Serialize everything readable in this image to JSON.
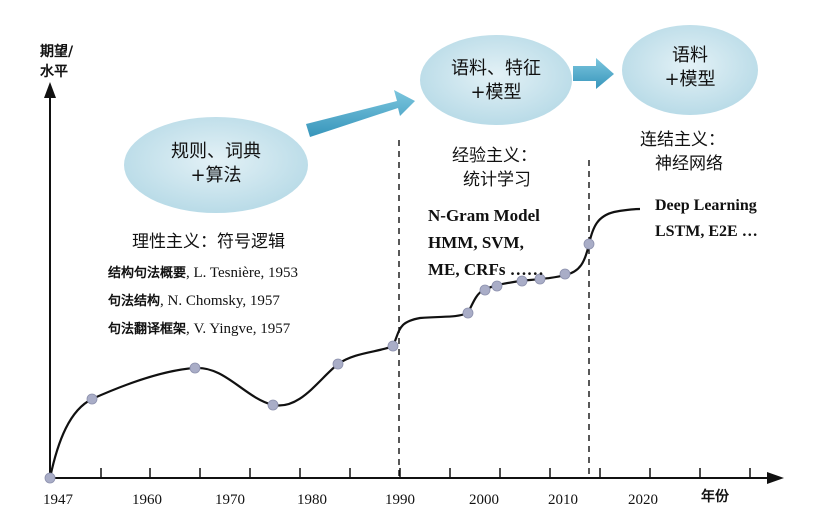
{
  "axes": {
    "y_label_line1": "期望/",
    "y_label_line2": "水平",
    "x_label": "年份",
    "x_ticks": [
      "1947",
      "1960",
      "1970",
      "1980",
      "1990",
      "2000",
      "2010",
      "2020"
    ]
  },
  "bubbles": {
    "rules": {
      "line1": "规则、词典",
      "line2": "+算法"
    },
    "features": {
      "line1": "语料、特征",
      "line2": "+模型"
    },
    "models": {
      "line1": "语料",
      "line2": "+模型"
    }
  },
  "eras": {
    "rationalism": {
      "title": "理性主义：符号逻辑",
      "refs": [
        {
          "zh": "结构句法概要",
          "en": ", L. Tesnière, 1953"
        },
        {
          "zh": "句法结构",
          "en": ", N. Chomsky, 1957"
        },
        {
          "zh": "句法翻译框架",
          "en": ", V. Yingve, 1957"
        }
      ]
    },
    "empiricism": {
      "title_line1": "经验主义：",
      "title_line2": "统计学习",
      "methods": [
        "N-Gram Model",
        "HMM, SVM,",
        "ME, CRFs ……"
      ]
    },
    "connectionism": {
      "title_line1": "连结主义：",
      "title_line2": "神经网络",
      "methods": [
        "Deep Learning",
        "LSTM, E2E …"
      ]
    }
  },
  "colors": {
    "bubble": "#bcdde8",
    "arrow": "#4aa8c8",
    "dot": "#a9adc7",
    "curve": "#111111"
  }
}
